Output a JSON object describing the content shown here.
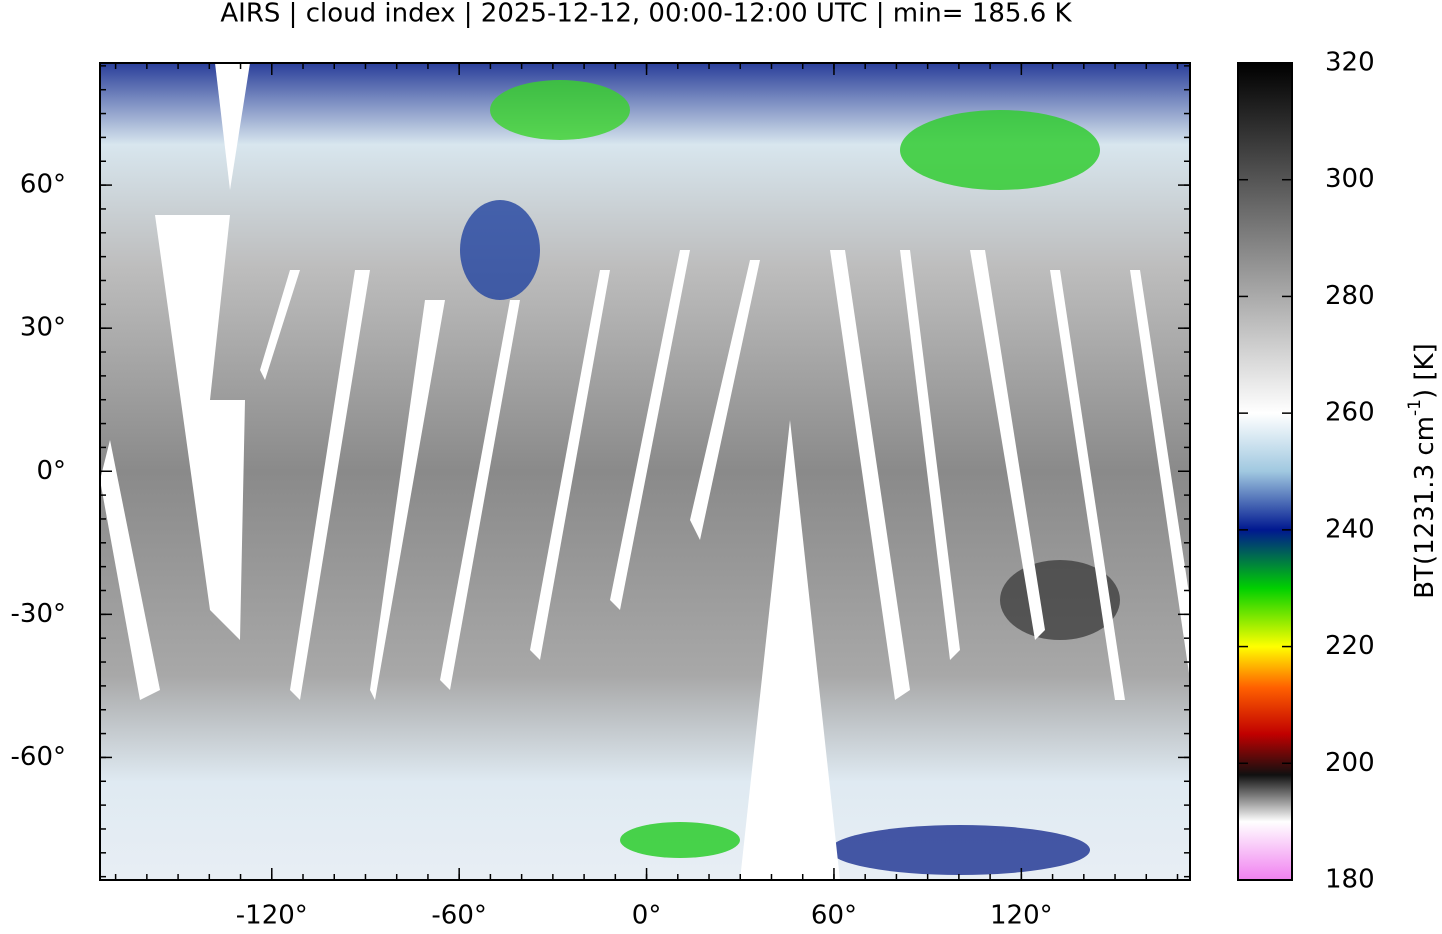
{
  "chart_data": {
    "type": "map",
    "title": "AIRS | cloud index | 2025-12-12, 00:00-12:00 UTC | min= 185.6 K",
    "xlim": [
      -175,
      174
    ],
    "ylim": [
      -85.7,
      85.6
    ],
    "xticks": [
      {
        "value": -120,
        "label": "-120°"
      },
      {
        "value": -60,
        "label": "-60°"
      },
      {
        "value": 0,
        "label": "0°"
      },
      {
        "value": 60,
        "label": "60°"
      },
      {
        "value": 120,
        "label": "120°"
      }
    ],
    "yticks": [
      {
        "value": 60,
        "label": "60°"
      },
      {
        "value": 30,
        "label": "30°"
      },
      {
        "value": 0,
        "label": "0°"
      },
      {
        "value": -30,
        "label": "-30°"
      },
      {
        "value": -60,
        "label": "-60°"
      }
    ],
    "colorbar": {
      "lim": [
        180,
        320
      ],
      "ticks": [
        180,
        200,
        220,
        240,
        260,
        280,
        300,
        320
      ],
      "label_main": "BT(1231.3 cm",
      "label_sup": "-1",
      "label_end": ") [K]",
      "colormap": [
        {
          "value": 180,
          "color": "#f080f0"
        },
        {
          "value": 190,
          "color": "#ffffff"
        },
        {
          "value": 198,
          "color": "#101010"
        },
        {
          "value": 205,
          "color": "#c00000"
        },
        {
          "value": 213,
          "color": "#ff6000"
        },
        {
          "value": 220,
          "color": "#ffff00"
        },
        {
          "value": 230,
          "color": "#00d000"
        },
        {
          "value": 240,
          "color": "#001890"
        },
        {
          "value": 250,
          "color": "#a0c8e0"
        },
        {
          "value": 260,
          "color": "#ffffff"
        },
        {
          "value": 320,
          "color": "#000000"
        }
      ]
    }
  }
}
